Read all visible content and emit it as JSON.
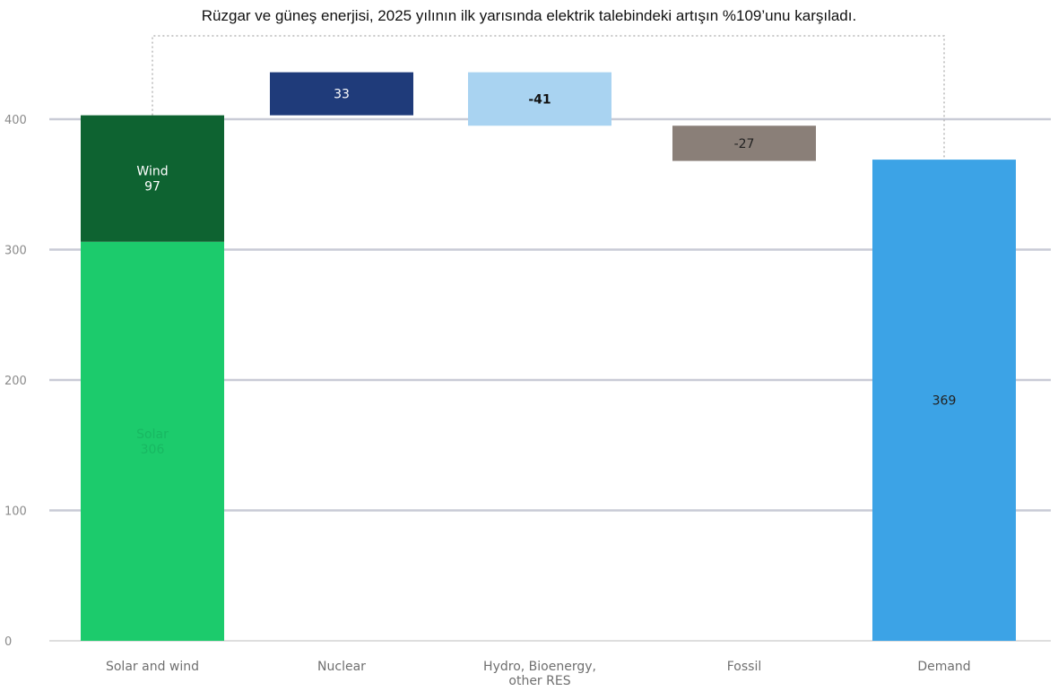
{
  "title": "Rüzgar ve güneş enerjisi, 2025 yılının ilk yarısında elektrik talebindeki artışın %109’unu karşıladı.",
  "chart_data": {
    "type": "bar",
    "subtype": "waterfall",
    "ylim": [
      0,
      420
    ],
    "yticks": [
      0,
      100,
      200,
      300,
      400
    ],
    "grid": true,
    "categories": [
      "Solar and wind",
      "Nuclear",
      "Hydro, Bioenergy, other RES",
      "Fossil",
      "Demand"
    ],
    "category_labels": [
      [
        "Solar and wind"
      ],
      [
        "Nuclear"
      ],
      [
        "Hydro, Bioenergy,",
        "other RES"
      ],
      [
        "Fossil"
      ],
      [
        "Demand"
      ]
    ],
    "bars": [
      {
        "category": "Solar and wind",
        "start": 0,
        "end": 306,
        "value": 306,
        "label": [
          "Solar",
          "306"
        ],
        "color": "#1ccb6c",
        "label_color": "#18b862"
      },
      {
        "category": "Solar and wind",
        "start": 306,
        "end": 403,
        "value": 97,
        "label": [
          "Wind",
          "97"
        ],
        "color": "#0e6331",
        "label_color": "#ffffff"
      },
      {
        "category": "Nuclear",
        "start": 403,
        "end": 436,
        "value": 33,
        "label": [
          "33"
        ],
        "color": "#1f3b7a",
        "label_color": "#ffffff"
      },
      {
        "category": "Hydro, Bioenergy, other RES",
        "start": 395,
        "end": 436,
        "value": -41,
        "label": [
          "-41"
        ],
        "color": "#a9d3f1",
        "label_color": "#111111"
      },
      {
        "category": "Fossil",
        "start": 368,
        "end": 395,
        "value": -27,
        "label": [
          "-27"
        ],
        "color": "#8a7f78",
        "label_color": "#222222"
      },
      {
        "category": "Demand",
        "start": 0,
        "end": 369,
        "value": 369,
        "label": [
          "369"
        ],
        "color": "#3ca3e6",
        "label_color": "#222222"
      }
    ]
  }
}
